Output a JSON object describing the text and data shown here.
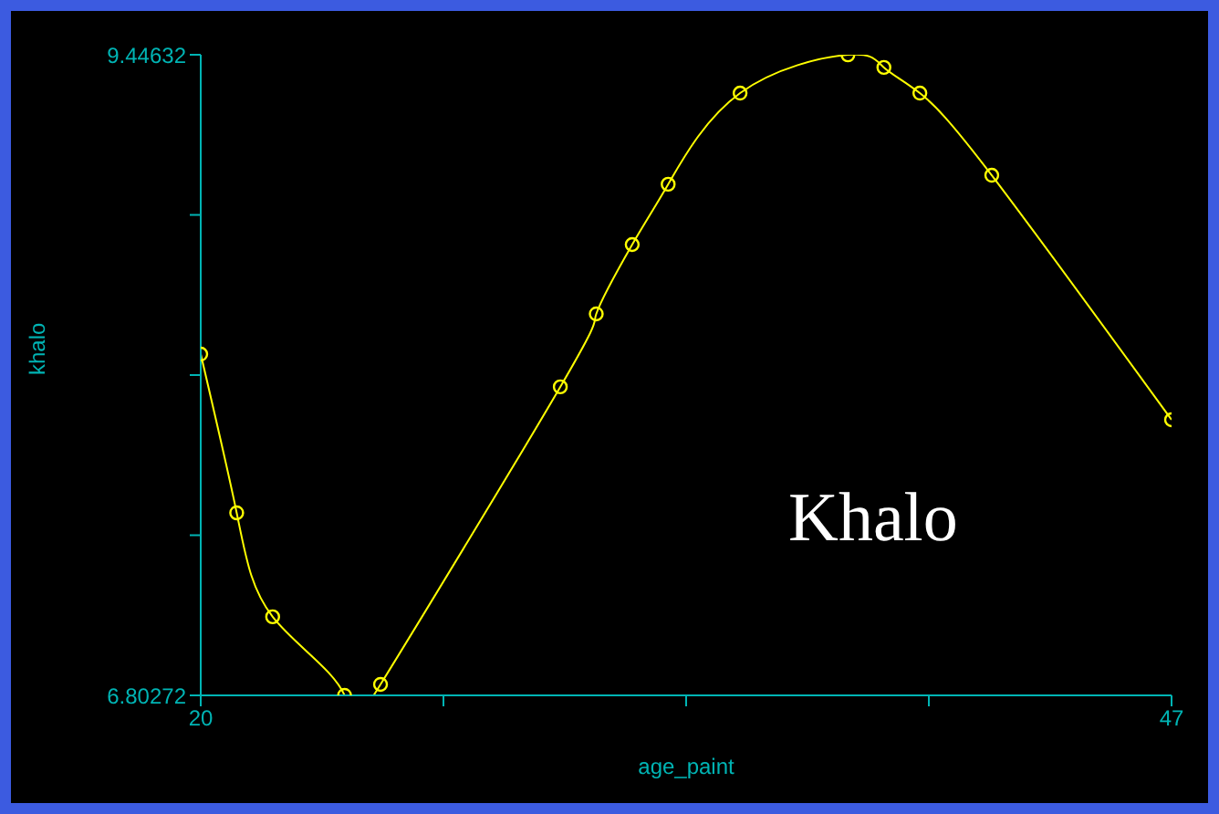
{
  "chart_data": {
    "type": "line",
    "xlabel": "age_paint",
    "ylabel": "khalo",
    "annotations": [
      "Khalo"
    ],
    "marker": "circle",
    "x": [
      20,
      21,
      22,
      24,
      25,
      30,
      31,
      32,
      33,
      35,
      38,
      39,
      40,
      42,
      47
    ],
    "series": [
      {
        "color": "#ffff00",
        "values": [
          8.211,
          7.556,
          7.127,
          6.803,
          6.848,
          8.076,
          8.377,
          8.663,
          8.912,
          9.288,
          9.446,
          9.394,
          9.288,
          8.949,
          7.94
        ]
      }
    ],
    "xlim": [
      20,
      47
    ],
    "xticks": [
      20,
      {
        "value": 26.75,
        "label": null
      },
      {
        "value": 33.5,
        "label": null
      },
      {
        "value": 40.25,
        "label": null
      },
      47
    ],
    "ylim": [
      6.80272,
      9.44632
    ],
    "yticks": [
      6.80272,
      {
        "value": 7.46362,
        "label": null
      },
      {
        "value": 8.12452,
        "label": null
      },
      {
        "value": 8.78542,
        "label": null
      },
      9.44632
    ]
  }
}
